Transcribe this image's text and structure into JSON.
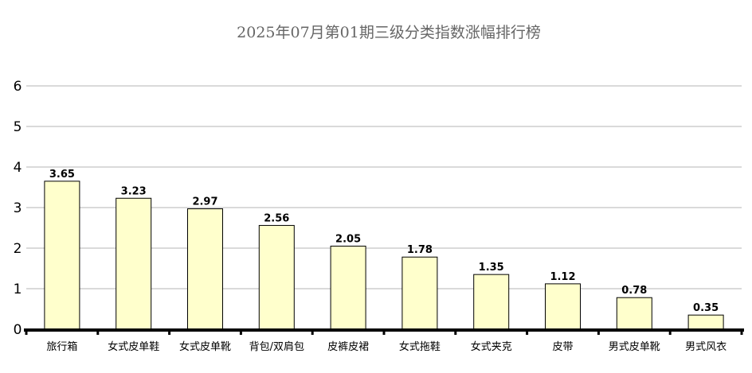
{
  "chart_data": {
    "type": "bar",
    "title": "2025年07月第01期三级分类指数涨幅排行榜",
    "categories": [
      "旅行箱",
      "女式皮单鞋",
      "女式皮单靴",
      "背包/双肩包",
      "皮裤皮裙",
      "女式拖鞋",
      "女式夹克",
      "皮带",
      "男式皮单靴",
      "男式风衣"
    ],
    "values": [
      3.65,
      3.23,
      2.97,
      2.56,
      2.05,
      1.78,
      1.35,
      1.12,
      0.78,
      0.35
    ],
    "data_labels": [
      "3.65",
      "3.23",
      "2.97",
      "2.56",
      "2.05",
      "1.78",
      "1.35",
      "1.12",
      "0.78",
      "0.35"
    ],
    "yticks": [
      "0",
      "1",
      "2",
      "3",
      "4",
      "5",
      "6"
    ],
    "ylim": [
      0,
      6
    ],
    "xlabel": "",
    "ylabel": "",
    "grid": true,
    "legend": "none",
    "colors": {
      "bar_fill": "#ffffcc",
      "bar_stroke": "#000000",
      "grid": "#b4b4b4",
      "axis": "#000000",
      "title": "#666666"
    }
  }
}
